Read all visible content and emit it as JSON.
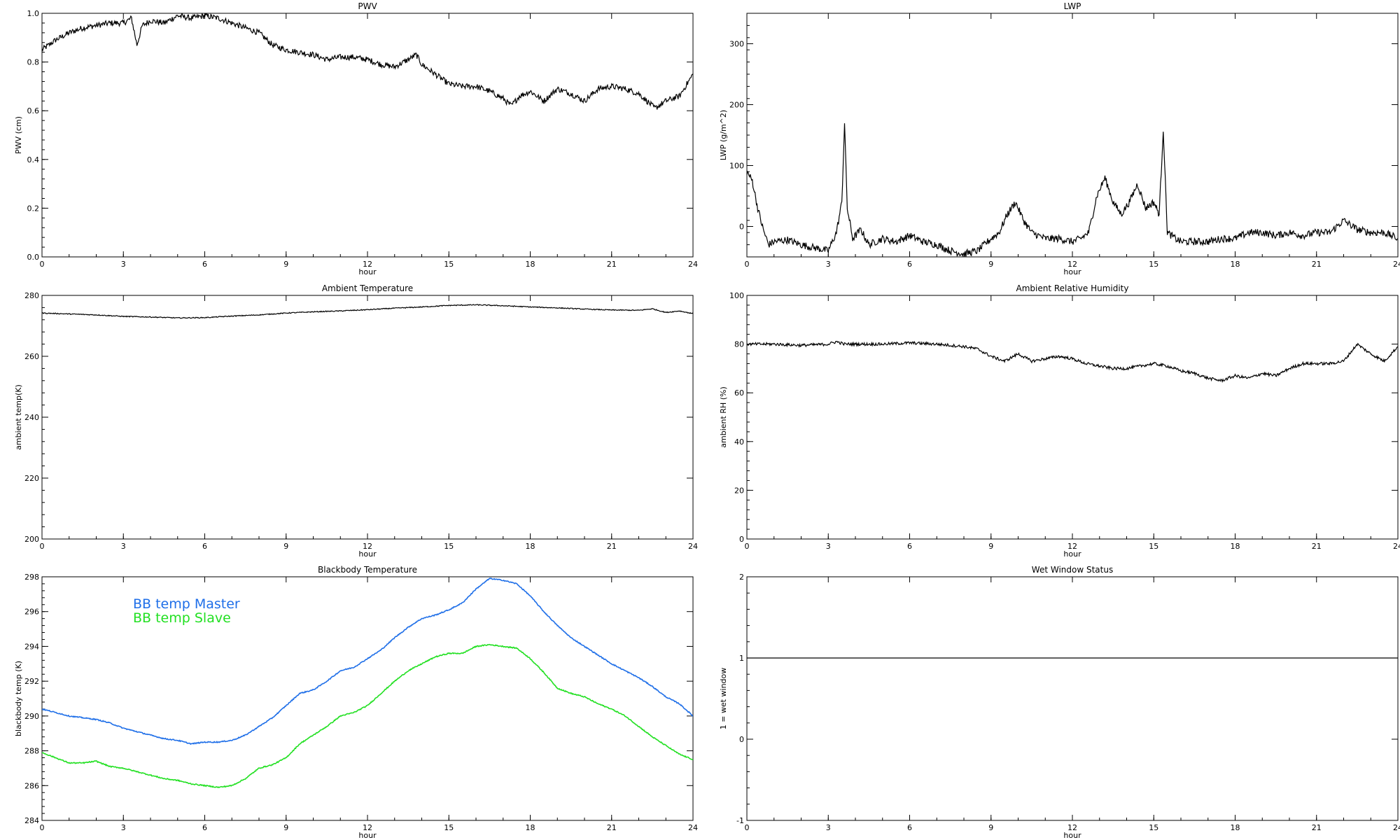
{
  "colors": {
    "axes": "#000000",
    "data": "#000000",
    "master": "#1f6fe8",
    "slave": "#22e022",
    "background": "#ffffff"
  },
  "chart_data": [
    {
      "id": "pwv",
      "type": "line",
      "title": "PWV",
      "xlabel": "hour",
      "ylabel": "PWV (cm)",
      "xlim": [
        0,
        24
      ],
      "ylim": [
        0,
        1.0
      ],
      "xticks": [
        0,
        3,
        6,
        9,
        12,
        15,
        18,
        21,
        24
      ],
      "yticks": [
        0.0,
        0.2,
        0.4,
        0.6,
        0.8,
        1.0
      ],
      "ytick_labels": [
        "0.0",
        "0.2",
        "0.4",
        "0.6",
        "0.8",
        "1.0"
      ],
      "series": [
        {
          "color": "#000000",
          "x": [
            0,
            0.5,
            1,
            1.5,
            2,
            2.5,
            3,
            3.3,
            3.5,
            3.7,
            4,
            4.5,
            5,
            5.5,
            6,
            6.5,
            7,
            7.5,
            8,
            8.5,
            9,
            9.5,
            10,
            10.5,
            11,
            11.5,
            12,
            12.5,
            13,
            13.5,
            13.8,
            14,
            14.5,
            15,
            15.5,
            16,
            16.5,
            17,
            17.3,
            17.6,
            18,
            18.5,
            19,
            19.5,
            20,
            20.5,
            21,
            21.5,
            22,
            22.3,
            22.6,
            23,
            23.5,
            24
          ],
          "y": [
            0.85,
            0.89,
            0.92,
            0.94,
            0.95,
            0.96,
            0.96,
            0.98,
            0.87,
            0.95,
            0.97,
            0.96,
            0.99,
            0.98,
            0.99,
            0.98,
            0.96,
            0.94,
            0.92,
            0.87,
            0.85,
            0.84,
            0.83,
            0.81,
            0.82,
            0.82,
            0.81,
            0.79,
            0.78,
            0.81,
            0.83,
            0.79,
            0.75,
            0.71,
            0.7,
            0.7,
            0.68,
            0.65,
            0.62,
            0.66,
            0.68,
            0.64,
            0.69,
            0.67,
            0.64,
            0.69,
            0.7,
            0.69,
            0.67,
            0.64,
            0.61,
            0.64,
            0.66,
            0.75
          ]
        }
      ]
    },
    {
      "id": "lwp",
      "type": "line",
      "title": "LWP",
      "xlabel": "hour",
      "ylabel": "LWP (g/m^2)",
      "xlim": [
        0,
        24
      ],
      "ylim": [
        -50,
        350
      ],
      "xticks": [
        0,
        3,
        6,
        9,
        12,
        15,
        18,
        21,
        24
      ],
      "yticks": [
        0,
        100,
        200,
        300
      ],
      "ytick_labels": [
        "0",
        "100",
        "200",
        "300"
      ],
      "series": [
        {
          "color": "#000000",
          "x": [
            0,
            0.2,
            0.4,
            0.6,
            0.8,
            1,
            1.5,
            2,
            2.5,
            3,
            3.3,
            3.5,
            3.6,
            3.7,
            3.9,
            4.2,
            4.5,
            5,
            5.5,
            6,
            6.5,
            7,
            7.5,
            8,
            8.5,
            9,
            9.3,
            9.6,
            9.9,
            10.2,
            10.5,
            11,
            11.5,
            12,
            12.3,
            12.6,
            12.9,
            13.2,
            13.5,
            13.8,
            14.1,
            14.4,
            14.7,
            15,
            15.2,
            15.35,
            15.5,
            15.8,
            16,
            16.5,
            17,
            17.5,
            18,
            18.5,
            19,
            19.5,
            20,
            20.5,
            21,
            21.5,
            22,
            22.5,
            23,
            23.5,
            24
          ],
          "y": [
            90,
            75,
            30,
            -5,
            -30,
            -25,
            -22,
            -30,
            -35,
            -40,
            -10,
            40,
            170,
            30,
            -20,
            -5,
            -30,
            -20,
            -25,
            -15,
            -25,
            -30,
            -40,
            -45,
            -40,
            -20,
            -10,
            20,
            40,
            10,
            -10,
            -20,
            -20,
            -25,
            -20,
            -10,
            50,
            80,
            40,
            20,
            40,
            70,
            30,
            40,
            20,
            160,
            -10,
            -20,
            -25,
            -25,
            -25,
            -20,
            -20,
            -10,
            -10,
            -15,
            -10,
            -15,
            -10,
            -10,
            10,
            -5,
            -10,
            -10,
            -20
          ]
        }
      ]
    },
    {
      "id": "ambient_temp",
      "type": "line",
      "title": "Ambient Temperature",
      "xlabel": "hour",
      "ylabel": "ambient temp(K)",
      "xlim": [
        0,
        24
      ],
      "ylim": [
        200,
        280
      ],
      "xticks": [
        0,
        3,
        6,
        9,
        12,
        15,
        18,
        21,
        24
      ],
      "yticks": [
        200,
        220,
        240,
        260,
        280
      ],
      "ytick_labels": [
        "200",
        "220",
        "240",
        "260",
        "280"
      ],
      "series": [
        {
          "color": "#000000",
          "x": [
            0,
            1,
            2,
            3,
            4,
            5,
            6,
            7,
            8,
            9,
            10,
            11,
            12,
            13,
            14,
            15,
            16,
            17,
            18,
            19,
            20,
            21,
            22,
            22.5,
            23,
            23.5,
            24
          ],
          "y": [
            274.2,
            273.9,
            273.6,
            273.1,
            272.9,
            272.6,
            272.7,
            273.2,
            273.6,
            274.2,
            274.6,
            274.9,
            275.3,
            275.8,
            276.2,
            276.7,
            276.9,
            276.6,
            276.2,
            275.9,
            275.5,
            275.2,
            275.1,
            275.6,
            274.4,
            274.9,
            274.0
          ]
        }
      ]
    },
    {
      "id": "ambient_rh",
      "type": "line",
      "title": "Ambient Relative Humidity",
      "xlabel": "hour",
      "ylabel": "ambient RH (%)",
      "xlim": [
        0,
        24
      ],
      "ylim": [
        0,
        100
      ],
      "xticks": [
        0,
        3,
        6,
        9,
        12,
        15,
        18,
        21,
        24
      ],
      "yticks": [
        0,
        20,
        40,
        60,
        80,
        100
      ],
      "ytick_labels": [
        "0",
        "20",
        "40",
        "60",
        "80",
        "100"
      ],
      "series": [
        {
          "color": "#000000",
          "x": [
            0,
            1,
            2,
            3,
            3.3,
            3.6,
            4,
            5,
            6,
            7,
            8,
            8.5,
            9,
            9.5,
            10,
            10.5,
            11,
            11.5,
            12,
            12.5,
            13,
            13.5,
            14,
            14.5,
            15,
            15.5,
            16,
            16.5,
            17,
            17.5,
            18,
            18.5,
            19,
            19.5,
            20,
            20.5,
            21,
            21.5,
            22,
            22.5,
            23,
            23.5,
            24
          ],
          "y": [
            80,
            80,
            79.5,
            80,
            81,
            80,
            80,
            80,
            80.5,
            80,
            79,
            78,
            75,
            73,
            76,
            73,
            74,
            75,
            74,
            72,
            71,
            70,
            70,
            71,
            72,
            71,
            69,
            68,
            66,
            65,
            67,
            66,
            68,
            67,
            70,
            72,
            72,
            72,
            73,
            80,
            76,
            73,
            79
          ]
        }
      ]
    },
    {
      "id": "bb_temp",
      "type": "line",
      "title": "Blackbody Temperature",
      "xlabel": "hour",
      "ylabel": "blackbody temp (K)",
      "xlim": [
        0,
        24
      ],
      "ylim": [
        284,
        298
      ],
      "xticks": [
        0,
        3,
        6,
        9,
        12,
        15,
        18,
        21,
        24
      ],
      "yticks": [
        284,
        286,
        288,
        290,
        292,
        294,
        296,
        298
      ],
      "ytick_labels": [
        "284",
        "286",
        "288",
        "290",
        "292",
        "294",
        "296",
        "298"
      ],
      "legend": [
        "BB temp Master",
        "BB temp Slave"
      ],
      "series": [
        {
          "name": "BB temp Master",
          "color": "#1f6fe8",
          "x": [
            0,
            0.5,
            1,
            1.5,
            2,
            2.5,
            3,
            3.5,
            4,
            4.5,
            5,
            5.5,
            6,
            6.5,
            7,
            7.5,
            8,
            8.5,
            9,
            9.5,
            10,
            10.5,
            11,
            11.5,
            12,
            12.5,
            13,
            13.5,
            14,
            14.5,
            15,
            15.5,
            16,
            16.5,
            17,
            17.5,
            18,
            18.5,
            19,
            19.5,
            20,
            20.5,
            21,
            21.5,
            22,
            22.5,
            23,
            23.5,
            24
          ],
          "y": [
            290.4,
            290.2,
            290.0,
            289.9,
            289.8,
            289.6,
            289.3,
            289.1,
            288.9,
            288.7,
            288.6,
            288.4,
            288.5,
            288.5,
            288.6,
            288.9,
            289.4,
            289.9,
            290.6,
            291.3,
            291.5,
            292.0,
            292.6,
            292.8,
            293.3,
            293.8,
            294.5,
            295.1,
            295.6,
            295.8,
            296.1,
            296.5,
            297.3,
            297.9,
            297.8,
            297.6,
            296.9,
            296.0,
            295.2,
            294.5,
            294.0,
            293.5,
            293.0,
            292.6,
            292.2,
            291.7,
            291.1,
            290.7,
            290.0
          ]
        },
        {
          "name": "BB temp Slave",
          "color": "#22e022",
          "x": [
            0,
            0.5,
            1,
            1.5,
            2,
            2.5,
            3,
            3.5,
            4,
            4.5,
            5,
            5.5,
            6,
            6.5,
            7,
            7.5,
            8,
            8.5,
            9,
            9.5,
            10,
            10.5,
            11,
            11.5,
            12,
            12.5,
            13,
            13.5,
            14,
            14.5,
            15,
            15.5,
            16,
            16.5,
            17,
            17.5,
            18,
            18.5,
            19,
            19.5,
            20,
            20.5,
            21,
            21.5,
            22,
            22.5,
            23,
            23.5,
            24
          ],
          "y": [
            287.9,
            287.6,
            287.3,
            287.3,
            287.4,
            287.1,
            287.0,
            286.8,
            286.6,
            286.4,
            286.3,
            286.1,
            286.0,
            285.9,
            286.0,
            286.4,
            287.0,
            287.2,
            287.6,
            288.4,
            288.9,
            289.4,
            290.0,
            290.2,
            290.6,
            291.3,
            292.0,
            292.6,
            293.0,
            293.4,
            293.6,
            293.6,
            294.0,
            294.1,
            294.0,
            293.9,
            293.3,
            292.5,
            291.6,
            291.3,
            291.1,
            290.7,
            290.4,
            290.0,
            289.4,
            288.8,
            288.3,
            287.8,
            287.5
          ]
        }
      ]
    },
    {
      "id": "wet_window",
      "type": "line",
      "title": "Wet Window Status",
      "xlabel": "hour",
      "ylabel": "1 = wet window",
      "xlim": [
        0,
        24
      ],
      "ylim": [
        -1,
        2
      ],
      "xticks": [
        0,
        3,
        6,
        9,
        12,
        15,
        18,
        21,
        24
      ],
      "yticks": [
        -1,
        0,
        1,
        2
      ],
      "ytick_labels": [
        "-1",
        "0",
        "1",
        "2"
      ],
      "series": [
        {
          "color": "#000000",
          "x": [
            0,
            24
          ],
          "y": [
            1,
            1
          ]
        }
      ]
    }
  ]
}
